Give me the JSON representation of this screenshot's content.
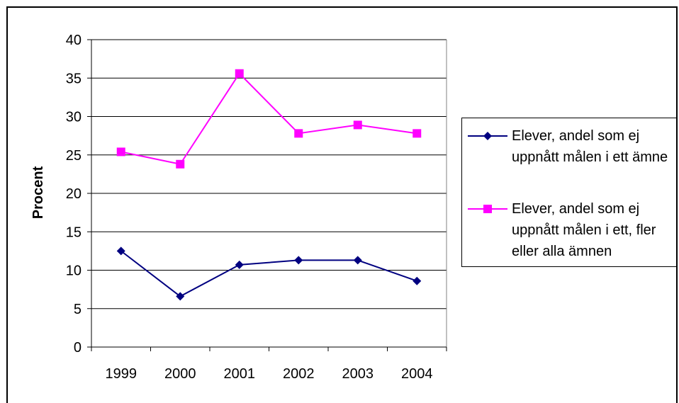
{
  "chart_data": {
    "type": "line",
    "title": "",
    "xlabel": "",
    "ylabel": "Procent",
    "categories": [
      "1999",
      "2000",
      "2001",
      "2002",
      "2003",
      "2004"
    ],
    "ylim": [
      0,
      40
    ],
    "yticks": [
      "0",
      "5",
      "10",
      "15",
      "20",
      "25",
      "30",
      "35",
      "40"
    ],
    "grid": "horizontal",
    "legend_position": "right",
    "series": [
      {
        "name": "Elever, andel som ej uppnått målen i ett ämne",
        "values": [
          12.5,
          6.6,
          10.7,
          11.3,
          11.3,
          8.6
        ],
        "color": "#000080",
        "marker": "diamond"
      },
      {
        "name": "Elever, andel som ej uppnått målen i ett, fler eller alla ämnen",
        "values": [
          25.4,
          23.8,
          35.6,
          27.8,
          28.9,
          27.8
        ],
        "color": "#FF00FF",
        "marker": "square"
      }
    ]
  }
}
